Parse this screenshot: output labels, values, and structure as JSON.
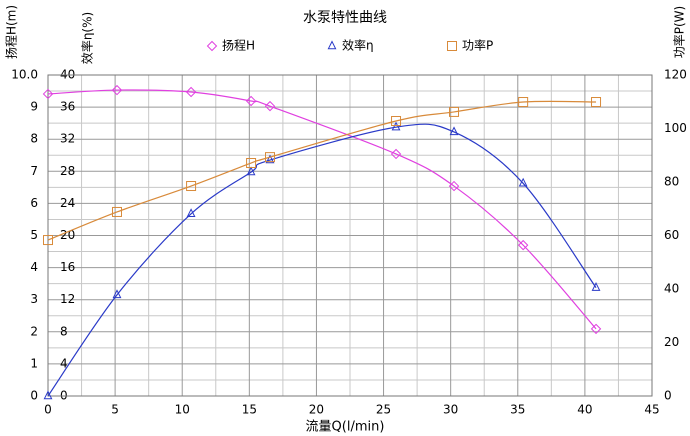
{
  "chart_data": {
    "type": "line",
    "title": "水泵特性曲线",
    "xlabel": "流量Q(l/min)",
    "ylabel": "扬程H(m)",
    "y2label": "功率P(W)",
    "y3label": "效率η(%)",
    "x": [
      0,
      5.14,
      10.66,
      15.13,
      16.54,
      25.93,
      30.25,
      35.4,
      40.83
    ],
    "xlim": [
      0,
      45
    ],
    "xticks": [
      0,
      5,
      10,
      15,
      20,
      25,
      30,
      35,
      40,
      45
    ],
    "ylim": [
      0,
      10
    ],
    "yticks": [
      0,
      1,
      2,
      3,
      4,
      5,
      6,
      7,
      8,
      9,
      {
        "value": 10,
        "label": "10.0"
      }
    ],
    "y2lim": [
      0,
      120
    ],
    "y2ticks": [
      0,
      20,
      40,
      60,
      80,
      100,
      120
    ],
    "y3lim": [
      0,
      40
    ],
    "y3ticks": [
      0,
      4,
      8,
      12,
      16,
      20,
      24,
      28,
      32,
      36,
      40
    ],
    "grid": true,
    "series": [
      {
        "name": "扬程H",
        "color": "#e040e0",
        "marker": "diamond",
        "axis": "y",
        "values": [
          9.41,
          9.53,
          9.47,
          9.19,
          9.03,
          7.54,
          6.54,
          4.7,
          2.09
        ]
      },
      {
        "name": "效率η",
        "color": "#2a3ac8",
        "marker": "triangle",
        "axis": "y3",
        "values": [
          0,
          12.6,
          22.7,
          27.9,
          29.4,
          33.5,
          32.9,
          26.5,
          13.5
        ]
      },
      {
        "name": "功率P",
        "color": "#d88a3a",
        "marker": "square",
        "axis": "y2",
        "values": [
          58.3,
          68.8,
          78.5,
          87.1,
          89.3,
          102.8,
          106.2,
          109.9,
          109.9
        ]
      }
    ]
  }
}
